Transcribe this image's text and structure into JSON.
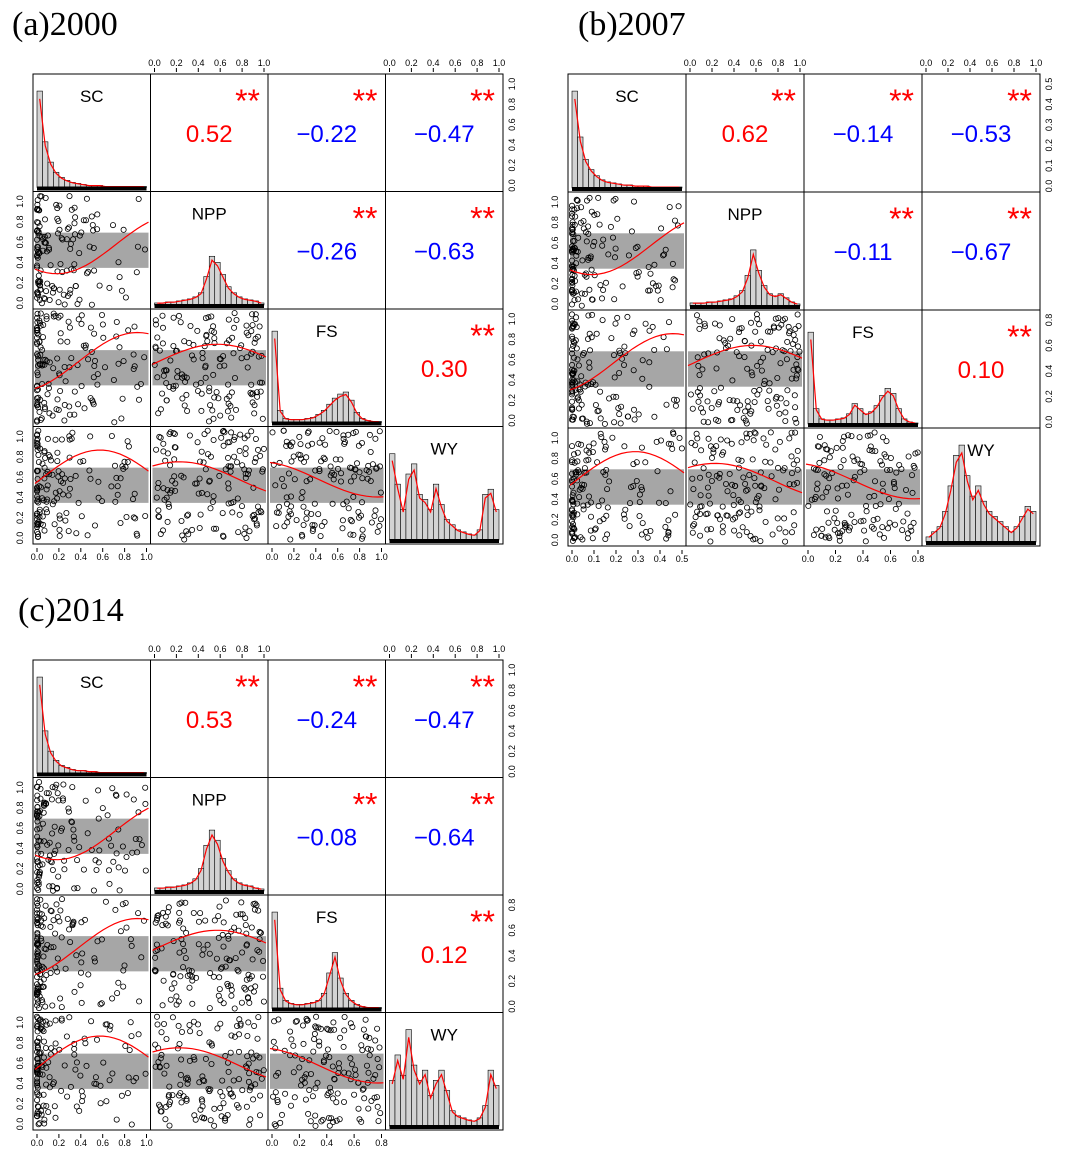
{
  "chart_data": [
    {
      "type": "scatter",
      "title": "(a)2000",
      "variables": [
        "SC",
        "NPP",
        "FS",
        "WY"
      ],
      "correlations": {
        "SC-NPP": {
          "value": "0.52",
          "stars": "**",
          "sign": "positive"
        },
        "SC-FS": {
          "value": "−0.22",
          "stars": "**",
          "sign": "negative"
        },
        "SC-WY": {
          "value": "−0.47",
          "stars": "**",
          "sign": "negative"
        },
        "NPP-FS": {
          "value": "−0.26",
          "stars": "**",
          "sign": "negative"
        },
        "NPP-WY": {
          "value": "−0.63",
          "stars": "**",
          "sign": "negative"
        },
        "FS-WY": {
          "value": "0.30",
          "stars": "**",
          "sign": "positive"
        }
      },
      "axes": {
        "top_ticks": [
          "0.0",
          "0.2",
          "0.4",
          "0.6",
          "0.8",
          "1.0"
        ],
        "right_ticks_row1": [
          "0.0",
          "0.2",
          "0.4",
          "0.6",
          "0.8",
          "1.0"
        ],
        "right_ticks_row3": [
          "0.0",
          "0.2",
          "0.4",
          "0.6",
          "0.8",
          "1.0"
        ],
        "left_ticks_row2": [
          "0.0",
          "0.2",
          "0.4",
          "0.6",
          "0.8",
          "1.0"
        ],
        "left_ticks_row4": [
          "0.0",
          "0.2",
          "0.4",
          "0.6",
          "0.8",
          "1.0"
        ],
        "bottom_ticks_col1": [
          "0.0",
          "0.2",
          "0.4",
          "0.6",
          "0.8",
          "1.0"
        ],
        "bottom_ticks_col3": [
          "0.0",
          "0.2",
          "0.4",
          "0.6",
          "0.8",
          "1.0"
        ],
        "range": [
          0,
          1
        ]
      },
      "histograms": {
        "SC": [
          0.95,
          0.45,
          0.25,
          0.15,
          0.1,
          0.07,
          0.05,
          0.04,
          0.03,
          0.02,
          0.02,
          0.02,
          0.01,
          0.01,
          0.01,
          0.01,
          0.01,
          0.01,
          0.01,
          0.01
        ],
        "NPP": [
          0.02,
          0.02,
          0.03,
          0.03,
          0.04,
          0.05,
          0.06,
          0.08,
          0.12,
          0.28,
          0.48,
          0.42,
          0.3,
          0.18,
          0.12,
          0.08,
          0.06,
          0.05,
          0.04,
          0.02
        ],
        "FS": [
          0.9,
          0.12,
          0.04,
          0.03,
          0.03,
          0.03,
          0.04,
          0.05,
          0.08,
          0.12,
          0.18,
          0.24,
          0.28,
          0.3,
          0.22,
          0.1,
          0.04,
          0.02,
          0.01,
          0.01
        ],
        "WY": [
          0.85,
          0.55,
          0.3,
          0.65,
          0.75,
          0.45,
          0.4,
          0.3,
          0.55,
          0.35,
          0.2,
          0.15,
          0.1,
          0.08,
          0.06,
          0.05,
          0.1,
          0.45,
          0.5,
          0.3
        ]
      }
    },
    {
      "type": "scatter",
      "title": "(b)2007",
      "variables": [
        "SC",
        "NPP",
        "FS",
        "WY"
      ],
      "correlations": {
        "SC-NPP": {
          "value": "0.62",
          "stars": "**",
          "sign": "positive"
        },
        "SC-FS": {
          "value": "−0.14",
          "stars": "**",
          "sign": "negative"
        },
        "SC-WY": {
          "value": "−0.53",
          "stars": "**",
          "sign": "negative"
        },
        "NPP-FS": {
          "value": "−0.11",
          "stars": "**",
          "sign": "negative"
        },
        "NPP-WY": {
          "value": "−0.67",
          "stars": "**",
          "sign": "negative"
        },
        "FS-WY": {
          "value": "0.10",
          "stars": "**",
          "sign": "positive"
        }
      },
      "axes": {
        "top_ticks": [
          "0.0",
          "0.2",
          "0.4",
          "0.6",
          "0.8",
          "1.0"
        ],
        "right_ticks_row1": [
          "0.0",
          "0.1",
          "0.2",
          "0.3",
          "0.4",
          "0.5"
        ],
        "right_ticks_row3": [
          "0.0",
          "0.2",
          "0.4",
          "0.6",
          "0.8"
        ],
        "left_ticks_row2": [
          "0.0",
          "0.2",
          "0.4",
          "0.6",
          "0.8",
          "1.0"
        ],
        "left_ticks_row4": [
          "0.0",
          "0.2",
          "0.4",
          "0.6",
          "0.8",
          "1.0"
        ],
        "bottom_ticks_col1": [
          "0.0",
          "0.1",
          "0.2",
          "0.3",
          "0.4",
          "0.5"
        ],
        "bottom_ticks_col3": [
          "0.0",
          "0.2",
          "0.4",
          "0.6",
          "0.8"
        ],
        "range": [
          0,
          1
        ]
      },
      "histograms": {
        "SC": [
          0.95,
          0.5,
          0.28,
          0.18,
          0.12,
          0.08,
          0.06,
          0.05,
          0.04,
          0.03,
          0.03,
          0.02,
          0.02,
          0.02,
          0.01,
          0.01,
          0.01,
          0.01,
          0.01,
          0.01
        ],
        "NPP": [
          0.03,
          0.03,
          0.03,
          0.04,
          0.04,
          0.05,
          0.06,
          0.07,
          0.1,
          0.15,
          0.3,
          0.55,
          0.35,
          0.2,
          0.12,
          0.1,
          0.12,
          0.08,
          0.04,
          0.02
        ],
        "FS": [
          0.9,
          0.15,
          0.05,
          0.04,
          0.04,
          0.05,
          0.06,
          0.1,
          0.2,
          0.15,
          0.1,
          0.12,
          0.18,
          0.28,
          0.35,
          0.3,
          0.15,
          0.05,
          0.02,
          0.01
        ],
        "WY": [
          0.05,
          0.1,
          0.15,
          0.3,
          0.55,
          0.85,
          0.95,
          0.65,
          0.45,
          0.55,
          0.4,
          0.3,
          0.25,
          0.2,
          0.15,
          0.1,
          0.15,
          0.25,
          0.35,
          0.3
        ]
      }
    },
    {
      "type": "scatter",
      "title": "(c)2014",
      "variables": [
        "SC",
        "NPP",
        "FS",
        "WY"
      ],
      "correlations": {
        "SC-NPP": {
          "value": "0.53",
          "stars": "**",
          "sign": "positive"
        },
        "SC-FS": {
          "value": "−0.24",
          "stars": "**",
          "sign": "negative"
        },
        "SC-WY": {
          "value": "−0.47",
          "stars": "**",
          "sign": "negative"
        },
        "NPP-FS": {
          "value": "−0.08",
          "stars": "**",
          "sign": "negative"
        },
        "NPP-WY": {
          "value": "−0.64",
          "stars": "**",
          "sign": "negative"
        },
        "FS-WY": {
          "value": "0.12",
          "stars": "**",
          "sign": "positive"
        }
      },
      "axes": {
        "top_ticks": [
          "0.0",
          "0.2",
          "0.4",
          "0.6",
          "0.8",
          "1.0"
        ],
        "right_ticks_row1": [
          "0.0",
          "0.2",
          "0.4",
          "0.6",
          "0.8",
          "1.0"
        ],
        "right_ticks_row3": [
          "0.0",
          "0.2",
          "0.4",
          "0.6",
          "0.8"
        ],
        "left_ticks_row2": [
          "0.0",
          "0.2",
          "0.4",
          "0.6",
          "0.8",
          "1.0"
        ],
        "left_ticks_row4": [
          "0.0",
          "0.2",
          "0.4",
          "0.6",
          "0.8",
          "1.0"
        ],
        "bottom_ticks_col1": [
          "0.0",
          "0.2",
          "0.4",
          "0.6",
          "0.8",
          "1.0"
        ],
        "bottom_ticks_col3": [
          "0.0",
          "0.2",
          "0.4",
          "0.6",
          "0.8"
        ],
        "range": [
          0,
          1
        ]
      },
      "histograms": {
        "SC": [
          0.95,
          0.42,
          0.22,
          0.13,
          0.08,
          0.06,
          0.04,
          0.03,
          0.03,
          0.02,
          0.02,
          0.01,
          0.01,
          0.01,
          0.01,
          0.01,
          0.01,
          0.01,
          0.01,
          0.01
        ],
        "NPP": [
          0.03,
          0.03,
          0.04,
          0.04,
          0.05,
          0.06,
          0.08,
          0.12,
          0.22,
          0.45,
          0.6,
          0.5,
          0.32,
          0.2,
          0.12,
          0.08,
          0.06,
          0.05,
          0.03,
          0.02
        ],
        "FS": [
          0.95,
          0.2,
          0.08,
          0.05,
          0.04,
          0.04,
          0.05,
          0.06,
          0.08,
          0.15,
          0.35,
          0.55,
          0.3,
          0.15,
          0.08,
          0.04,
          0.02,
          0.01,
          0.01,
          0.01
        ],
        "WY": [
          0.45,
          0.7,
          0.5,
          0.95,
          0.6,
          0.45,
          0.55,
          0.3,
          0.45,
          0.55,
          0.35,
          0.15,
          0.1,
          0.08,
          0.06,
          0.05,
          0.08,
          0.2,
          0.55,
          0.4
        ]
      }
    }
  ],
  "colors": {
    "positive": "#ff0000",
    "negative": "#0000ff",
    "stars": "#ff0000",
    "smooth": "#ff0000",
    "hist_fill": "#d3d3d3",
    "point": "#000000"
  }
}
